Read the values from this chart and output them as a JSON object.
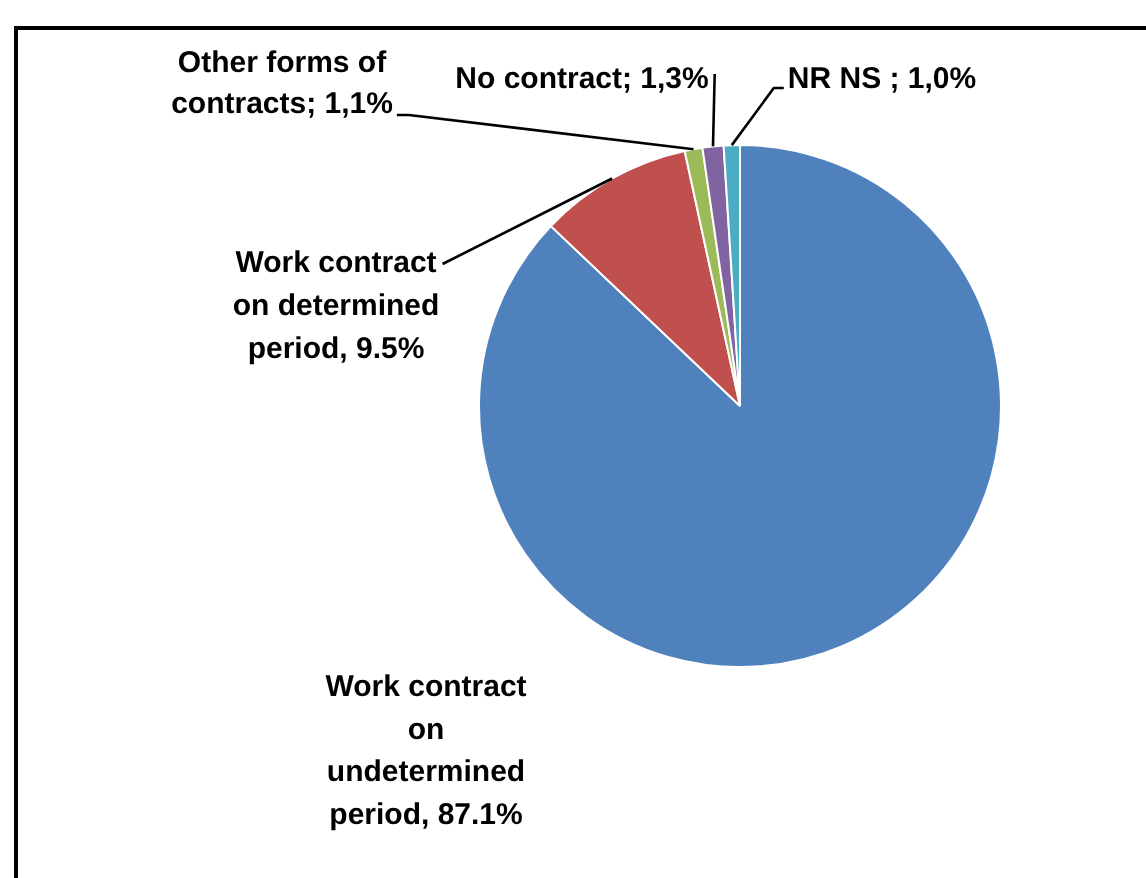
{
  "chart_data": {
    "type": "pie",
    "categories": [
      "Work contract on undetermined period",
      "Work contract on determined period",
      "Other forms of contracts",
      "No contract",
      "NR NS"
    ],
    "values": [
      87.1,
      9.5,
      1.1,
      1.3,
      1.0
    ],
    "colors": [
      "#4f81bd",
      "#c0504d",
      "#9bbb59",
      "#8064a2",
      "#4bacc6"
    ],
    "value_labels": [
      "87.1%",
      "9.5%",
      "1,1%",
      "1,3%",
      "1,0%"
    ]
  }
}
